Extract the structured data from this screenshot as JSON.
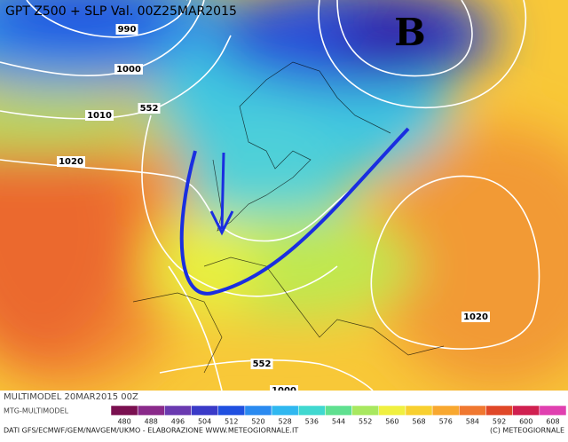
{
  "header": {
    "title": "GPT Z500 + SLP Val. 00Z25MAR2015"
  },
  "map": {
    "labels": [
      {
        "text": "B",
        "kind": "pressure-center"
      },
      {
        "text": "990",
        "kind": "isobar"
      },
      {
        "text": "1000",
        "kind": "isobar"
      },
      {
        "text": "1010",
        "kind": "isobar"
      },
      {
        "text": "552",
        "kind": "geopotential"
      },
      {
        "text": "1020",
        "kind": "isobar"
      },
      {
        "text": "1020",
        "kind": "isobar"
      },
      {
        "text": "552",
        "kind": "geopotential"
      },
      {
        "text": "1000",
        "kind": "isobar"
      }
    ]
  },
  "footer": {
    "model": "MULTIMODEL 20MAR2015 00Z",
    "source": "MTG-MULTIMODEL",
    "credits": "DATI GFS/ECMWF/GEM/NAVGEM/UKMO - ELABORAZIONE WWW.METEOGIORNALE.IT",
    "copyright": "(C) METEOGIORNALE"
  },
  "legend": {
    "ticks": [
      480,
      488,
      496,
      504,
      512,
      520,
      528,
      536,
      544,
      552,
      560,
      568,
      576,
      584,
      592,
      600,
      608
    ],
    "colors": [
      "#7a1050",
      "#8a2a8a",
      "#6a3ab0",
      "#3a3ac8",
      "#2050e0",
      "#2a8af0",
      "#30b8f0",
      "#40d8d0",
      "#60e090",
      "#a8e860",
      "#f0f040",
      "#f8d030",
      "#f8a830",
      "#f07830",
      "#e04828",
      "#d02050",
      "#e040b0"
    ]
  }
}
